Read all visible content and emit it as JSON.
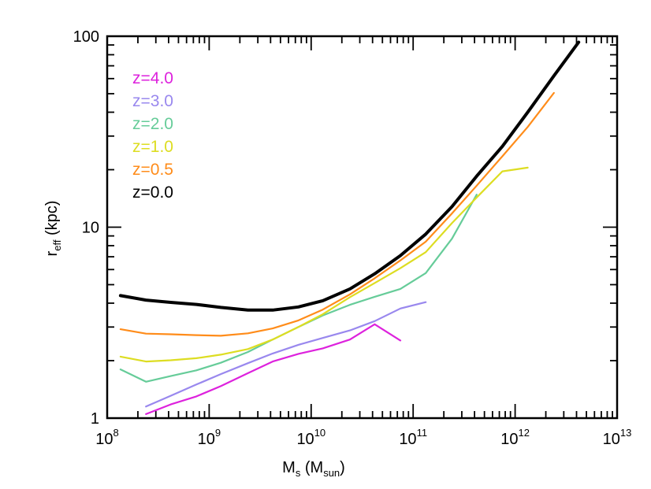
{
  "chart_data": {
    "type": "line",
    "xlabel": {
      "main": "M",
      "sub1": "s",
      "mid": " (M",
      "sub2": "sun",
      "end": ")"
    },
    "ylabel": {
      "main": "r",
      "sub": "eff",
      "end": " (kpc)"
    },
    "x_scale": "log",
    "y_scale": "log",
    "xlim": [
      100000000.0,
      10000000000000.0
    ],
    "ylim": [
      1,
      100
    ],
    "x_ticks": [
      {
        "value": 100000000.0,
        "base": "10",
        "exp": "8"
      },
      {
        "value": 1000000000.0,
        "base": "10",
        "exp": "9"
      },
      {
        "value": 10000000000.0,
        "base": "10",
        "exp": "10"
      },
      {
        "value": 100000000000.0,
        "base": "10",
        "exp": "11"
      },
      {
        "value": 1000000000000.0,
        "base": "10",
        "exp": "12"
      },
      {
        "value": 10000000000000.0,
        "base": "10",
        "exp": "13"
      }
    ],
    "y_ticks": [
      {
        "value": 1,
        "label": "1"
      },
      {
        "value": 10,
        "label": "10"
      },
      {
        "value": 100,
        "label": "100"
      }
    ],
    "grid": false,
    "legend_position": "top-left",
    "series": [
      {
        "name": "z=4.0",
        "color": "#dd22dd",
        "width": 2.2,
        "x": [
          240000000.0,
          420000000.0,
          750000000.0,
          1300000000.0,
          2400000000.0,
          4200000000.0,
          7500000000.0,
          13000000000.0,
          24000000000.0,
          42000000000.0,
          75000000000.0
        ],
        "y": [
          1.05,
          1.18,
          1.3,
          1.47,
          1.72,
          1.98,
          2.17,
          2.32,
          2.58,
          3.1,
          2.55
        ]
      },
      {
        "name": "z=3.0",
        "color": "#9988ee",
        "width": 2.2,
        "x": [
          240000000.0,
          420000000.0,
          750000000.0,
          1300000000.0,
          2400000000.0,
          4200000000.0,
          7500000000.0,
          13000000000.0,
          24000000000.0,
          42000000000.0,
          75000000000.0,
          133000000000.0
        ],
        "y": [
          1.15,
          1.31,
          1.5,
          1.7,
          1.94,
          2.18,
          2.42,
          2.63,
          2.88,
          3.22,
          3.75,
          4.05
        ]
      },
      {
        "name": "z=2.0",
        "color": "#66cc99",
        "width": 2.2,
        "x": [
          135000000.0,
          240000000.0,
          420000000.0,
          750000000.0,
          1300000000.0,
          2400000000.0,
          4200000000.0,
          7500000000.0,
          13000000000.0,
          24000000000.0,
          42000000000.0,
          75000000000.0,
          133000000000.0,
          240000000000.0,
          420000000000.0
        ],
        "y": [
          1.8,
          1.55,
          1.66,
          1.78,
          1.95,
          2.22,
          2.58,
          3.0,
          3.45,
          3.92,
          4.32,
          4.75,
          5.75,
          8.7,
          14.8
        ]
      },
      {
        "name": "z=1.0",
        "color": "#dddd22",
        "width": 2.2,
        "x": [
          135000000.0,
          240000000.0,
          420000000.0,
          750000000.0,
          1300000000.0,
          2400000000.0,
          4200000000.0,
          7500000000.0,
          13000000000.0,
          24000000000.0,
          42000000000.0,
          75000000000.0,
          133000000000.0,
          240000000000.0,
          420000000000.0,
          750000000000.0,
          1330000000000.0
        ],
        "y": [
          2.1,
          1.98,
          2.01,
          2.06,
          2.15,
          2.3,
          2.58,
          3.0,
          3.5,
          4.3,
          5.1,
          6.1,
          7.4,
          10.5,
          14.3,
          19.6,
          20.5
        ]
      },
      {
        "name": "z=0.5",
        "color": "#ff8c1a",
        "width": 2.2,
        "x": [
          135000000.0,
          240000000.0,
          420000000.0,
          750000000.0,
          1300000000.0,
          2400000000.0,
          4200000000.0,
          7500000000.0,
          13000000000.0,
          24000000000.0,
          42000000000.0,
          75000000000.0,
          133000000000.0,
          240000000000.0,
          420000000000.0,
          750000000000.0,
          1330000000000.0,
          2400000000000.0
        ],
        "y": [
          2.92,
          2.77,
          2.75,
          2.72,
          2.7,
          2.78,
          2.95,
          3.25,
          3.7,
          4.45,
          5.4,
          6.7,
          8.4,
          11.8,
          16.5,
          23.5,
          33.5,
          50.5
        ]
      },
      {
        "name": "z=0.0",
        "color": "#000000",
        "width": 4,
        "x": [
          135000000.0,
          240000000.0,
          420000000.0,
          750000000.0,
          1300000000.0,
          2400000000.0,
          4200000000.0,
          7500000000.0,
          13000000000.0,
          24000000000.0,
          42000000000.0,
          75000000000.0,
          133000000000.0,
          240000000000.0,
          420000000000.0,
          750000000000.0,
          1330000000000.0,
          2400000000000.0,
          4200000000000.0
        ],
        "y": [
          4.38,
          4.15,
          4.04,
          3.94,
          3.8,
          3.68,
          3.68,
          3.82,
          4.12,
          4.75,
          5.7,
          7.1,
          9.2,
          12.8,
          18.5,
          26.5,
          40.0,
          62.0,
          93.0
        ]
      }
    ]
  }
}
